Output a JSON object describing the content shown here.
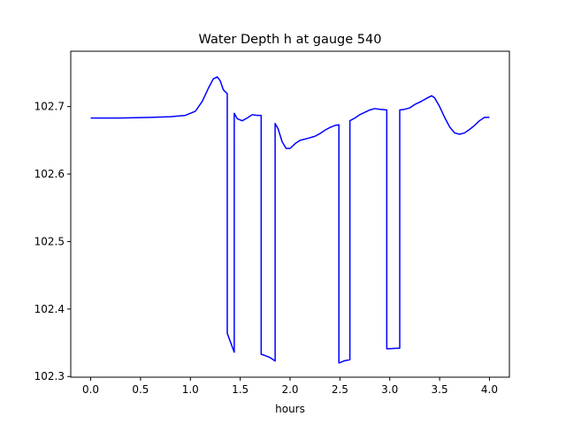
{
  "chart_data": {
    "type": "line",
    "title": "Water Depth h at gauge 540",
    "xlabel": "hours",
    "ylabel": "",
    "xlim": [
      -0.2,
      4.2
    ],
    "ylim": [
      102.299,
      102.782
    ],
    "xticks": [
      0.0,
      0.5,
      1.0,
      1.5,
      2.0,
      2.5,
      3.0,
      3.5,
      4.0
    ],
    "xtick_labels": [
      "0.0",
      "0.5",
      "1.0",
      "1.5",
      "2.0",
      "2.5",
      "3.0",
      "3.5",
      "4.0"
    ],
    "yticks": [
      102.3,
      102.4,
      102.5,
      102.6,
      102.7
    ],
    "ytick_labels": [
      "102.3",
      "102.4",
      "102.5",
      "102.6",
      "102.7"
    ],
    "grid": false,
    "legend": "none",
    "colors": {
      "series": "#0000ff",
      "axes": "#000000",
      "background": "#ffffff"
    },
    "series": [
      {
        "x": [
          0.0,
          0.3,
          0.6,
          0.8,
          0.95,
          1.05,
          1.12,
          1.18,
          1.23,
          1.27,
          1.3,
          1.33,
          1.37,
          1.37,
          1.41,
          1.44,
          1.44,
          1.47,
          1.52,
          1.57,
          1.62,
          1.67,
          1.71,
          1.71,
          1.75,
          1.8,
          1.85,
          1.85,
          1.88,
          1.92,
          1.96,
          2.0,
          2.05,
          2.1,
          2.18,
          2.25,
          2.3,
          2.35,
          2.4,
          2.45,
          2.49,
          2.49,
          2.54,
          2.6,
          2.6,
          2.65,
          2.7,
          2.8,
          2.85,
          2.9,
          2.97,
          2.97,
          3.1,
          3.1,
          3.15,
          3.2,
          3.25,
          3.32,
          3.38,
          3.42,
          3.45,
          3.5,
          3.55,
          3.6,
          3.65,
          3.7,
          3.75,
          3.8,
          3.85,
          3.9,
          3.95,
          4.0
        ],
        "y": [
          102.683,
          102.683,
          102.684,
          102.685,
          102.687,
          102.693,
          102.708,
          102.727,
          102.741,
          102.744,
          102.738,
          102.725,
          102.719,
          102.364,
          102.348,
          102.336,
          102.69,
          102.682,
          102.679,
          102.683,
          102.688,
          102.687,
          102.687,
          102.333,
          102.331,
          102.328,
          102.323,
          102.675,
          102.667,
          102.648,
          102.638,
          102.638,
          102.645,
          102.65,
          102.653,
          102.656,
          102.66,
          102.665,
          102.669,
          102.672,
          102.673,
          102.32,
          102.323,
          102.325,
          102.679,
          102.683,
          102.688,
          102.695,
          102.697,
          102.696,
          102.695,
          102.341,
          102.342,
          102.695,
          102.696,
          102.698,
          102.703,
          102.708,
          102.713,
          102.716,
          102.713,
          102.7,
          102.684,
          102.67,
          102.661,
          102.659,
          102.661,
          102.666,
          102.672,
          102.679,
          102.684,
          102.684
        ]
      }
    ]
  }
}
